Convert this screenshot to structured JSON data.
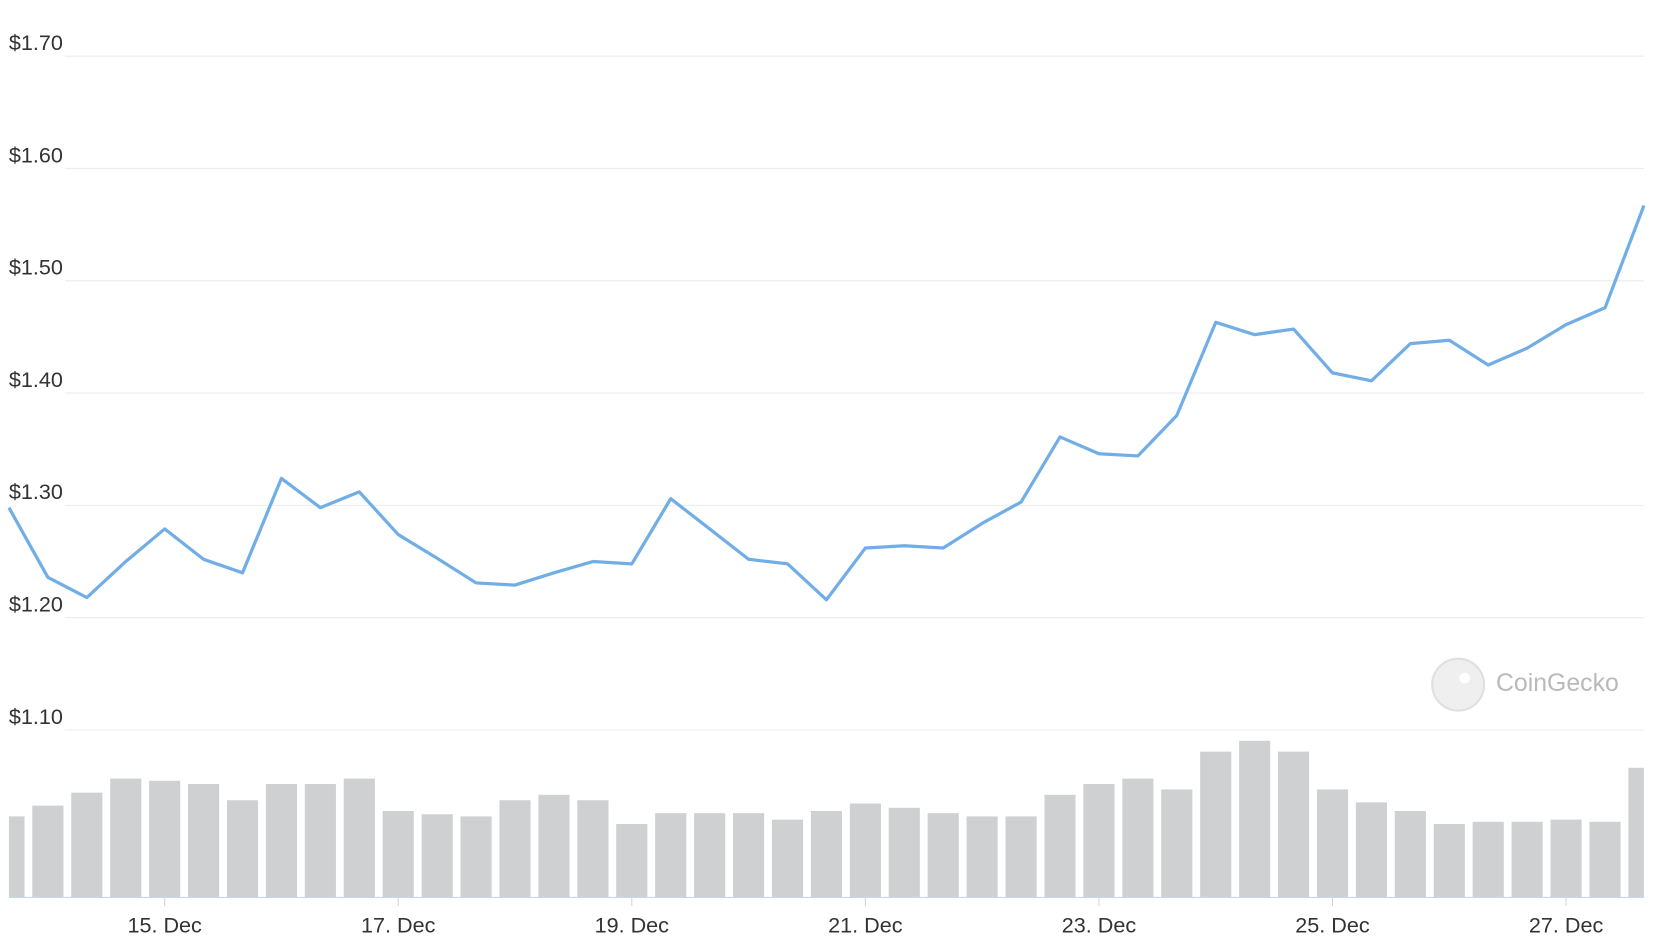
{
  "chart_data": {
    "type": "line",
    "watermark": "CoinGecko",
    "categories": [
      null,
      null,
      null,
      null,
      "15. Dec",
      null,
      null,
      null,
      null,
      null,
      "17. Dec",
      null,
      null,
      null,
      null,
      null,
      "19. Dec",
      null,
      null,
      null,
      null,
      null,
      "21. Dec",
      null,
      null,
      null,
      null,
      null,
      "23. Dec",
      null,
      null,
      null,
      null,
      null,
      "25. Dec",
      null,
      null,
      null,
      null,
      null,
      "27. Dec",
      null,
      null
    ],
    "values": [
      1.298,
      1.236,
      1.218,
      1.25,
      1.279,
      1.252,
      1.24,
      1.324,
      1.298,
      1.312,
      1.274,
      1.253,
      1.231,
      1.229,
      1.24,
      1.25,
      1.248,
      1.306,
      1.279,
      1.252,
      1.248,
      1.216,
      1.262,
      1.264,
      1.262,
      1.284,
      1.303,
      1.361,
      1.346,
      1.344,
      1.38,
      1.463,
      1.452,
      1.457,
      1.418,
      1.411,
      1.444,
      1.447,
      1.425,
      1.44,
      1.461,
      1.476,
      1.567
    ],
    "color": "#72aee6",
    "volume": {
      "color": "#cfd0d2",
      "values": [
        75,
        85,
        97,
        110,
        108,
        105,
        90,
        105,
        105,
        110,
        80,
        77,
        75,
        90,
        95,
        90,
        68,
        78,
        78,
        78,
        72,
        80,
        87,
        83,
        78,
        75,
        75,
        95,
        105,
        110,
        100,
        135,
        145,
        135,
        100,
        88,
        80,
        68,
        70,
        70,
        72,
        70,
        120
      ]
    },
    "ylim": [
      1.1,
      1.7
    ],
    "yticks": [
      {
        "value": 1.1,
        "label": "$1.10"
      },
      {
        "value": 1.2,
        "label": "$1.20"
      },
      {
        "value": 1.3,
        "label": "$1.30"
      },
      {
        "value": 1.4,
        "label": "$1.40"
      },
      {
        "value": 1.5,
        "label": "$1.50"
      },
      {
        "value": 1.6,
        "label": "$1.60"
      },
      {
        "value": 1.7,
        "label": "$1.70"
      }
    ],
    "grid": true
  }
}
